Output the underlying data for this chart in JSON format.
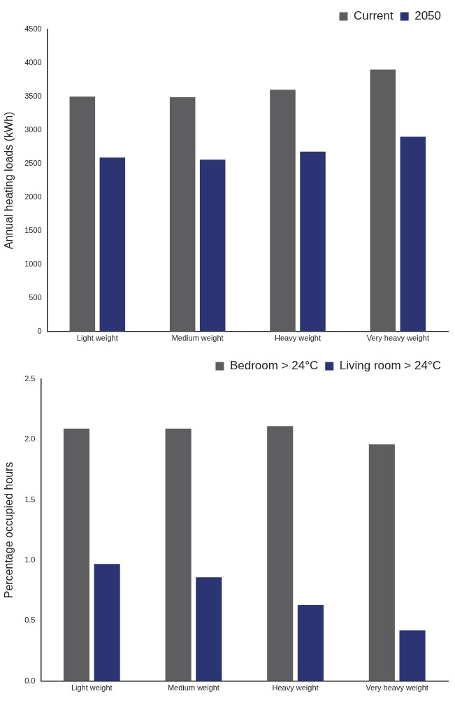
{
  "chart_data": [
    {
      "type": "bar",
      "ylabel": "Annual heating loads (kWh)",
      "categories": [
        "Light weight",
        "Medium weight",
        "Heavy weight",
        "Very heavy weight"
      ],
      "series": [
        {
          "name": "Current",
          "color": "#5e5e60",
          "values": [
            3500,
            3490,
            3600,
            3900
          ]
        },
        {
          "name": "2050",
          "color": "#2b3573",
          "values": [
            2590,
            2560,
            2680,
            2900
          ]
        }
      ],
      "ylim": [
        0,
        4500
      ],
      "yticks": [
        0,
        500,
        1000,
        1500,
        2000,
        2500,
        3000,
        3500,
        4000,
        4500
      ],
      "grid": false,
      "legend": "top right"
    },
    {
      "type": "bar",
      "ylabel": "Percentage occupied hours",
      "categories": [
        "Light weight",
        "Medium weight",
        "Heavy weight",
        "Very heavy weight"
      ],
      "series": [
        {
          "name": "Bedroom > 24°C",
          "color": "#5e5e60",
          "values": [
            2.09,
            2.09,
            2.11,
            1.96
          ]
        },
        {
          "name": "Living room > 24°C",
          "color": "#2b3573",
          "values": [
            0.97,
            0.86,
            0.63,
            0.42
          ]
        }
      ],
      "ylim": [
        0,
        2.5
      ],
      "yticks": [
        {
          "value": 0,
          "label": "0.0"
        },
        {
          "value": 0.5,
          "label": "0.5"
        },
        {
          "value": 1,
          "label": "1.0"
        },
        {
          "value": 1.5,
          "label": "1.5"
        },
        {
          "value": 2,
          "label": "2.0"
        },
        {
          "value": 2.5,
          "label": "2.5"
        }
      ],
      "grid": false,
      "legend": "top right"
    }
  ]
}
